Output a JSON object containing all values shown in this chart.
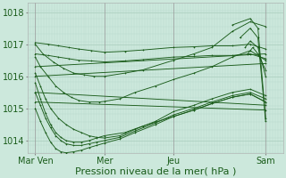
{
  "bg_color": "#cce8dc",
  "line_color": "#1a5c1a",
  "grid_color_v": "#b8d8cc",
  "grid_color_h": "#a8ccbc",
  "ylabel_ticks": [
    1014,
    1015,
    1016,
    1017,
    1018
  ],
  "xlim": [
    0,
    100
  ],
  "ylim": [
    1013.6,
    1018.3
  ],
  "xlabel": "Pression niveau de la mer( hPa )",
  "xlabel_fontsize": 8,
  "tick_fontsize": 7,
  "xtick_labels": [
    "Mar Ven",
    "Mer",
    "Jeu",
    "Sam"
  ],
  "xtick_positions": [
    3,
    30,
    57,
    93
  ],
  "vline_positions": [
    3,
    30,
    57,
    93
  ],
  "lines": [
    {
      "x": [
        3,
        8,
        12,
        16,
        20,
        25,
        30,
        38,
        45,
        57,
        65,
        72,
        80,
        87,
        93
      ],
      "y": [
        1017.05,
        1017.0,
        1016.95,
        1016.9,
        1016.85,
        1016.8,
        1016.75,
        1016.78,
        1016.82,
        1016.9,
        1016.92,
        1016.95,
        1016.95,
        1017.0,
        1016.85
      ]
    },
    {
      "x": [
        3,
        8,
        12,
        16,
        20,
        25,
        30,
        38,
        45,
        57,
        65,
        72,
        80,
        87,
        93
      ],
      "y": [
        1016.7,
        1016.65,
        1016.6,
        1016.55,
        1016.5,
        1016.48,
        1016.45,
        1016.48,
        1016.52,
        1016.6,
        1016.62,
        1016.65,
        1016.65,
        1016.7,
        1016.55
      ]
    },
    {
      "x": [
        3,
        93
      ],
      "y": [
        1016.3,
        1016.7
      ]
    },
    {
      "x": [
        3,
        93
      ],
      "y": [
        1016.0,
        1016.4
      ]
    },
    {
      "x": [
        3,
        6,
        10,
        14,
        18,
        22,
        26,
        30,
        38,
        45,
        57,
        65,
        72,
        80,
        87,
        93
      ],
      "y": [
        1017.0,
        1016.7,
        1016.45,
        1016.25,
        1016.1,
        1016.05,
        1016.0,
        1016.0,
        1016.1,
        1016.2,
        1016.5,
        1016.7,
        1016.9,
        1017.4,
        1017.7,
        1017.55
      ]
    },
    {
      "x": [
        3,
        5,
        8,
        11,
        14,
        17,
        20,
        24,
        28,
        30,
        36,
        42,
        50,
        57,
        65,
        72,
        80,
        87,
        93
      ],
      "y": [
        1016.6,
        1016.3,
        1016.0,
        1015.7,
        1015.5,
        1015.35,
        1015.25,
        1015.2,
        1015.2,
        1015.22,
        1015.3,
        1015.5,
        1015.7,
        1015.9,
        1016.1,
        1016.3,
        1016.6,
        1016.8,
        1016.5
      ]
    },
    {
      "x": [
        3,
        5,
        7,
        9,
        12,
        15,
        18,
        21,
        24,
        27,
        30,
        36,
        42,
        50,
        57,
        65,
        72,
        80,
        87,
        93
      ],
      "y": [
        1016.1,
        1015.7,
        1015.3,
        1015.0,
        1014.7,
        1014.5,
        1014.35,
        1014.25,
        1014.15,
        1014.1,
        1014.08,
        1014.15,
        1014.35,
        1014.6,
        1014.9,
        1015.1,
        1015.3,
        1015.5,
        1015.6,
        1015.4
      ]
    },
    {
      "x": [
        3,
        5,
        7,
        9,
        11,
        13,
        15,
        18,
        21,
        24,
        27,
        30,
        36,
        42,
        50,
        57,
        65,
        72,
        80,
        87,
        93
      ],
      "y": [
        1015.5,
        1015.1,
        1014.7,
        1014.4,
        1014.15,
        1014.0,
        1013.9,
        1013.85,
        1013.85,
        1013.9,
        1013.95,
        1014.0,
        1014.1,
        1014.3,
        1014.55,
        1014.8,
        1015.0,
        1015.2,
        1015.4,
        1015.5,
        1015.3
      ]
    },
    {
      "x": [
        3,
        5,
        7,
        9,
        11,
        13,
        15,
        18,
        21,
        24,
        27,
        30,
        36,
        42,
        50,
        57,
        65,
        72,
        80,
        87,
        93
      ],
      "y": [
        1015.0,
        1014.6,
        1014.25,
        1013.95,
        1013.75,
        1013.65,
        1013.62,
        1013.65,
        1013.7,
        1013.78,
        1013.85,
        1013.92,
        1014.05,
        1014.25,
        1014.5,
        1014.75,
        1014.95,
        1015.15,
        1015.35,
        1015.45,
        1015.2
      ]
    },
    {
      "x": [
        3,
        5,
        7,
        9,
        11,
        13,
        15,
        18,
        21,
        24,
        27,
        30,
        38,
        45,
        57,
        65,
        72,
        80,
        87,
        93
      ],
      "y": [
        1015.8,
        1015.3,
        1014.85,
        1014.5,
        1014.25,
        1014.1,
        1014.0,
        1013.95,
        1013.95,
        1014.0,
        1014.08,
        1014.15,
        1014.25,
        1014.45,
        1014.75,
        1014.95,
        1015.15,
        1015.35,
        1015.45,
        1015.2
      ]
    },
    {
      "x": [
        3,
        93
      ],
      "y": [
        1015.2,
        1014.95
      ]
    },
    {
      "x": [
        3,
        93
      ],
      "y": [
        1015.5,
        1015.1
      ]
    },
    {
      "x": [
        80,
        87,
        90,
        93
      ],
      "y": [
        1017.6,
        1017.8,
        1017.5,
        1014.7
      ]
    },
    {
      "x": [
        83,
        87,
        90,
        93
      ],
      "y": [
        1017.2,
        1017.5,
        1017.2,
        1014.6
      ]
    },
    {
      "x": [
        85,
        87,
        90,
        93
      ],
      "y": [
        1016.9,
        1017.1,
        1016.9,
        1016.0
      ]
    },
    {
      "x": [
        86,
        88,
        90,
        93
      ],
      "y": [
        1016.7,
        1016.9,
        1016.7,
        1016.2
      ]
    }
  ],
  "n_vgrid": 97,
  "n_hgrid_minor": 20
}
